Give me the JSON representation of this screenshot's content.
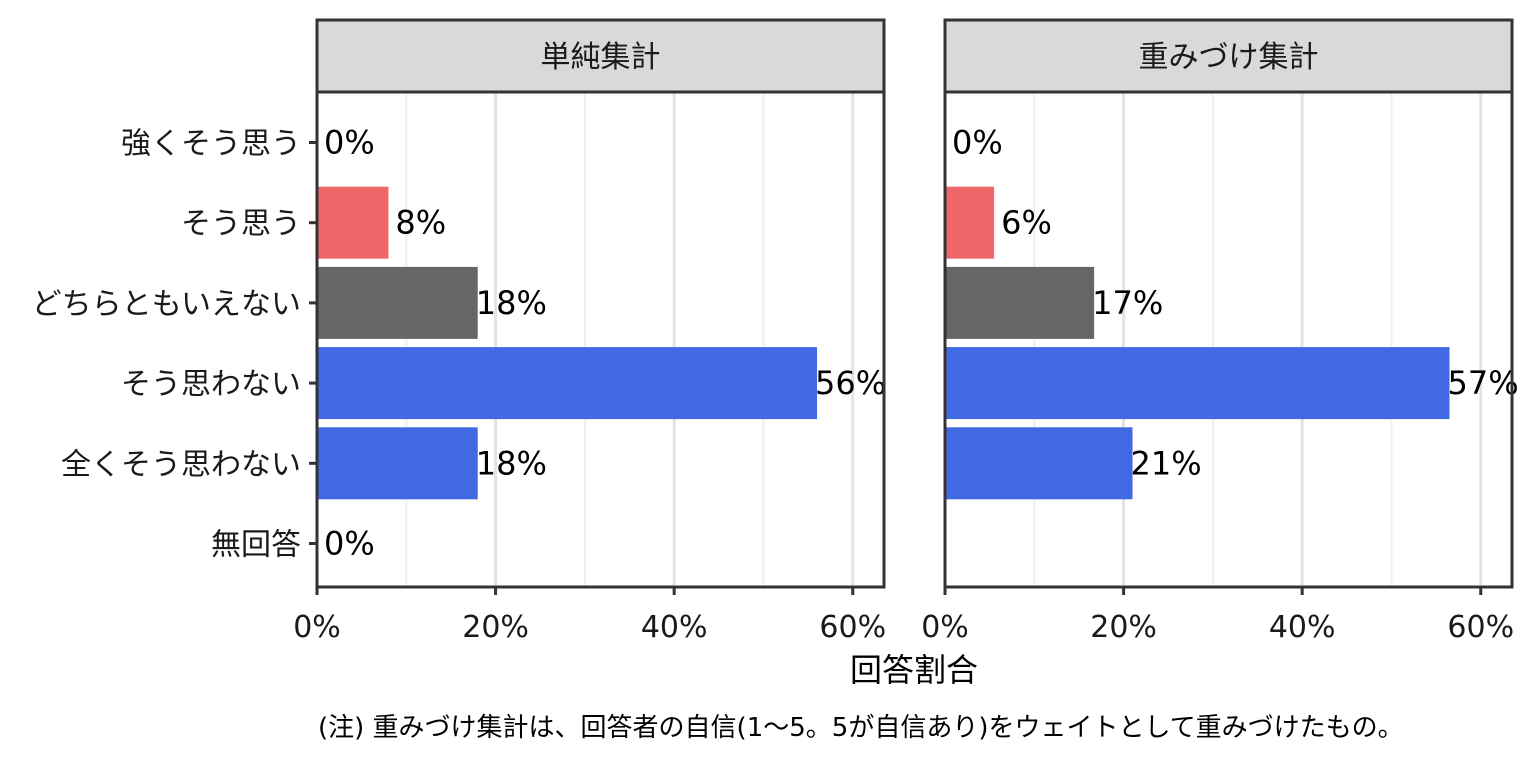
{
  "chart_data": {
    "type": "bar",
    "orientation": "horizontal",
    "categories": [
      "強くそう思う",
      "そう思う",
      "どちらともいえない",
      "そう思わない",
      "全くそう思わない",
      "無回答"
    ],
    "xlabel": "回答割合",
    "xlim": [
      0,
      0.635
    ],
    "x_ticks": [
      0,
      0.2,
      0.4,
      0.6
    ],
    "x_tick_labels": [
      "0%",
      "20%",
      "40%",
      "60%"
    ],
    "grid": true,
    "bar_colors": [
      "#F8766D",
      "#F0676A",
      "#666666",
      "#4169E1",
      "#4169E1",
      "#999999"
    ],
    "panels": [
      {
        "title": "単純集計",
        "values": [
          0,
          0.08,
          0.18,
          0.56,
          0.18,
          0
        ],
        "labels": [
          "0%",
          "8%",
          "18%",
          "56%",
          "18%",
          "0%"
        ]
      },
      {
        "title": "重みづけ集計",
        "values": [
          0,
          0.055,
          0.167,
          0.565,
          0.21,
          null
        ],
        "labels": [
          "0%",
          "6%",
          "17%",
          "57%",
          "21%",
          null
        ]
      }
    ],
    "note": "(注) 重みづけ集計は、回答者の自信(1～5。5が自信あり)をウェイトとして重みづけたもの。"
  }
}
